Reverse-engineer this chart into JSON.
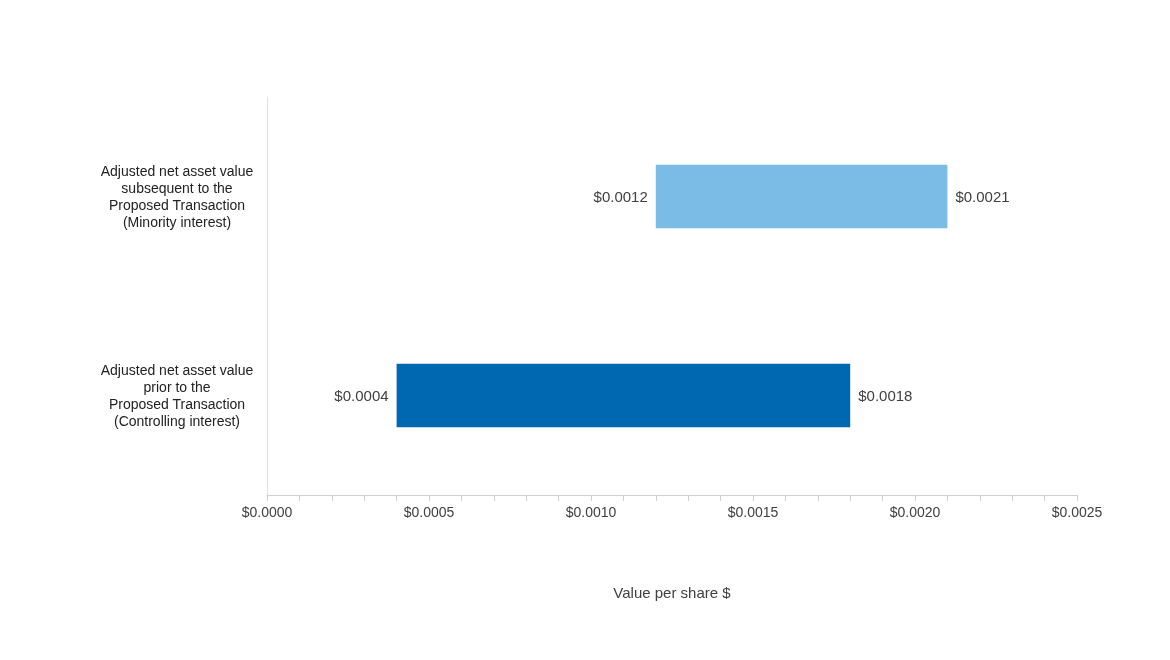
{
  "chart_data": {
    "type": "bar",
    "orientation": "horizontal",
    "xlabel": "Value per share $",
    "categories": [
      "Adjusted net asset value\nsubsequent to the\nProposed Transaction\n(Minority interest)",
      "Adjusted net asset value\nprior to the\nProposed Transaction\n(Controlling interest)"
    ],
    "base": [
      0.0012,
      0.0004
    ],
    "values": [
      0.0009,
      0.0014
    ],
    "colors": [
      "#7bbce6",
      "#0068b0"
    ],
    "xlim": [
      0,
      0.0025
    ],
    "xticks": [
      {
        "value": 0,
        "label": "$0.0000"
      },
      {
        "value": 0.0001,
        "label": null
      },
      {
        "value": 0.0002,
        "label": null
      },
      {
        "value": 0.0003,
        "label": null
      },
      {
        "value": 0.0004,
        "label": null
      },
      {
        "value": 0.0005,
        "label": "$0.0005"
      },
      {
        "value": 0.0006,
        "label": null
      },
      {
        "value": 0.0007,
        "label": null
      },
      {
        "value": 0.0008,
        "label": null
      },
      {
        "value": 0.0009,
        "label": null
      },
      {
        "value": 0.001,
        "label": "$0.0010"
      },
      {
        "value": 0.0011,
        "label": null
      },
      {
        "value": 0.0012,
        "label": null
      },
      {
        "value": 0.0013,
        "label": null
      },
      {
        "value": 0.0014,
        "label": null
      },
      {
        "value": 0.0015,
        "label": "$0.0015"
      },
      {
        "value": 0.0016,
        "label": null
      },
      {
        "value": 0.0017,
        "label": null
      },
      {
        "value": 0.0018,
        "label": null
      },
      {
        "value": 0.0019,
        "label": null
      },
      {
        "value": 0.002,
        "label": "$0.0020"
      },
      {
        "value": 0.0021,
        "label": null
      },
      {
        "value": 0.0022,
        "label": null
      },
      {
        "value": 0.0023,
        "label": null
      },
      {
        "value": 0.0024,
        "label": null
      },
      {
        "value": 0.0025,
        "label": "$0.0025"
      }
    ],
    "annotations": [
      {
        "text": "$0.0012",
        "x": 0.0012,
        "y": "Adjusted net asset value\nsubsequent to the\nProposed Transaction\n(Minority interest)"
      },
      {
        "text": "$0.0021",
        "x": 0.0021,
        "y": "Adjusted net asset value\nsubsequent to the\nProposed Transaction\n(Minority interest)"
      },
      {
        "text": "$0.0004",
        "x": 0.0004,
        "y": "Adjusted net asset value\nprior to the\nProposed Transaction\n(Controlling interest)"
      },
      {
        "text": "$0.0018",
        "x": 0.0018,
        "y": "Adjusted net asset value\nprior to the\nProposed Transaction\n(Controlling interest)"
      }
    ],
    "grid": false
  }
}
